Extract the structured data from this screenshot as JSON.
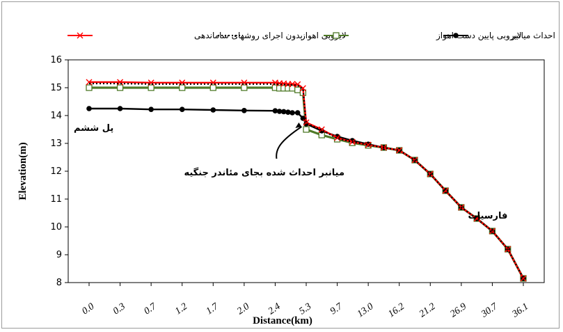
{
  "chart_data": {
    "type": "line",
    "title": "",
    "xlabel": "Distance(km)",
    "ylabel": "Elevation(m)",
    "ylim": [
      8,
      16
    ],
    "yticks": [
      "8",
      "9",
      "10",
      "11",
      "12",
      "13",
      "14",
      "15",
      "16"
    ],
    "categories": [
      "0.0",
      "0.3",
      "0.7",
      "1.2",
      "1.7",
      "2.0",
      "2.4",
      "5.3",
      "9.7",
      "13.0",
      "16.2",
      "21.2",
      "26.9",
      "30.7",
      "36.1"
    ],
    "x_positions": [
      0.0,
      0.3,
      0.7,
      1.2,
      1.7,
      2.0,
      2.4,
      5.3,
      9.7,
      13.0,
      16.2,
      21.2,
      26.9,
      30.7,
      36.1
    ],
    "grid": false,
    "legend_position": "top",
    "series": [
      {
        "name": "بدون اجرای روشهای ساماندهی",
        "color": "#ff0000",
        "style": "solid",
        "marker": "x",
        "points": [
          [
            0,
            15.2
          ],
          [
            0.3,
            15.2
          ],
          [
            0.7,
            15.18
          ],
          [
            1.2,
            15.18
          ],
          [
            1.7,
            15.18
          ],
          [
            2.0,
            15.18
          ],
          [
            2.4,
            15.18
          ],
          [
            2.8,
            15.16
          ],
          [
            3.2,
            15.15
          ],
          [
            3.6,
            15.13
          ],
          [
            4.0,
            15.13
          ],
          [
            4.5,
            15.12
          ],
          [
            5.0,
            14.98
          ],
          [
            5.3,
            13.75
          ],
          [
            7.5,
            13.5
          ],
          [
            9.7,
            13.2
          ],
          [
            11.3,
            13.05
          ],
          [
            13.0,
            12.95
          ],
          [
            14.6,
            12.85
          ],
          [
            16.2,
            12.75
          ],
          [
            18.7,
            12.4
          ],
          [
            21.2,
            11.9
          ],
          [
            24.0,
            11.3
          ],
          [
            26.9,
            10.7
          ],
          [
            28.8,
            10.3
          ],
          [
            30.7,
            9.85
          ],
          [
            33.4,
            9.2
          ],
          [
            36.1,
            8.15
          ]
        ]
      },
      {
        "name": "لایروبی اهواز",
        "color": "#000000",
        "style": "dotted",
        "marker": "none",
        "points": [
          [
            0,
            15.15
          ],
          [
            0.3,
            15.15
          ],
          [
            0.7,
            15.13
          ],
          [
            1.2,
            15.13
          ],
          [
            1.7,
            15.13
          ],
          [
            2.0,
            15.13
          ],
          [
            2.4,
            15.13
          ],
          [
            2.8,
            15.12
          ],
          [
            3.2,
            15.12
          ],
          [
            3.6,
            15.1
          ],
          [
            4.0,
            15.1
          ],
          [
            4.5,
            15.08
          ],
          [
            5.0,
            14.95
          ],
          [
            5.3,
            13.72
          ],
          [
            7.5,
            13.48
          ],
          [
            9.7,
            13.18
          ],
          [
            11.3,
            13.05
          ],
          [
            13.0,
            12.95
          ],
          [
            14.6,
            12.85
          ],
          [
            16.2,
            12.75
          ],
          [
            18.7,
            12.4
          ],
          [
            21.2,
            11.9
          ],
          [
            24.0,
            11.3
          ],
          [
            26.9,
            10.7
          ],
          [
            28.8,
            10.3
          ],
          [
            30.7,
            9.85
          ],
          [
            33.4,
            9.2
          ],
          [
            36.1,
            8.15
          ]
        ]
      },
      {
        "name": "لایروبی پایین دست اهواز",
        "color": "#4f7a28",
        "style": "solid",
        "marker": "square",
        "points": [
          [
            0,
            15.0
          ],
          [
            0.3,
            15.0
          ],
          [
            0.7,
            15.0
          ],
          [
            1.2,
            15.0
          ],
          [
            1.7,
            15.0
          ],
          [
            2.0,
            15.0
          ],
          [
            2.4,
            15.0
          ],
          [
            2.8,
            14.98
          ],
          [
            3.2,
            14.98
          ],
          [
            3.6,
            14.98
          ],
          [
            4.0,
            14.98
          ],
          [
            4.5,
            14.92
          ],
          [
            5.0,
            14.82
          ],
          [
            5.3,
            13.5
          ],
          [
            7.5,
            13.3
          ],
          [
            9.7,
            13.15
          ],
          [
            11.3,
            13.02
          ],
          [
            13.0,
            12.93
          ],
          [
            14.6,
            12.85
          ],
          [
            16.2,
            12.75
          ],
          [
            18.7,
            12.4
          ],
          [
            21.2,
            11.9
          ],
          [
            24.0,
            11.3
          ],
          [
            26.9,
            10.7
          ],
          [
            28.8,
            10.3
          ],
          [
            30.7,
            9.85
          ],
          [
            33.4,
            9.2
          ],
          [
            36.1,
            8.15
          ]
        ]
      },
      {
        "name": "احداث میانبر",
        "color": "#000000",
        "style": "solid",
        "marker": "circle",
        "points": [
          [
            0,
            14.25
          ],
          [
            0.3,
            14.25
          ],
          [
            0.7,
            14.22
          ],
          [
            1.2,
            14.22
          ],
          [
            1.7,
            14.2
          ],
          [
            2.0,
            14.18
          ],
          [
            2.4,
            14.17
          ],
          [
            2.8,
            14.15
          ],
          [
            3.2,
            14.14
          ],
          [
            3.6,
            14.12
          ],
          [
            4.0,
            14.1
          ],
          [
            4.5,
            14.1
          ],
          [
            5.0,
            13.9
          ],
          [
            5.3,
            13.7
          ],
          [
            7.5,
            13.45
          ],
          [
            9.7,
            13.25
          ],
          [
            11.3,
            13.1
          ],
          [
            13.0,
            12.97
          ],
          [
            14.6,
            12.85
          ],
          [
            16.2,
            12.75
          ],
          [
            18.7,
            12.4
          ],
          [
            21.2,
            11.9
          ],
          [
            24.0,
            11.3
          ],
          [
            26.9,
            10.7
          ],
          [
            28.8,
            10.3
          ],
          [
            30.7,
            9.85
          ],
          [
            33.4,
            9.2
          ],
          [
            36.1,
            8.15
          ]
        ]
      }
    ],
    "annotations": [
      {
        "id": "bridge",
        "text": "پل ششم",
        "x": 0.0,
        "y": 13.45
      },
      {
        "id": "cutoff",
        "text": "میانبر احداث شده بجای مئاندر جنگیه",
        "x": 5.3,
        "y": 11.85
      },
      {
        "id": "farsiat",
        "text": "فارسیات",
        "x": 30.7,
        "y": 10.3
      }
    ]
  }
}
